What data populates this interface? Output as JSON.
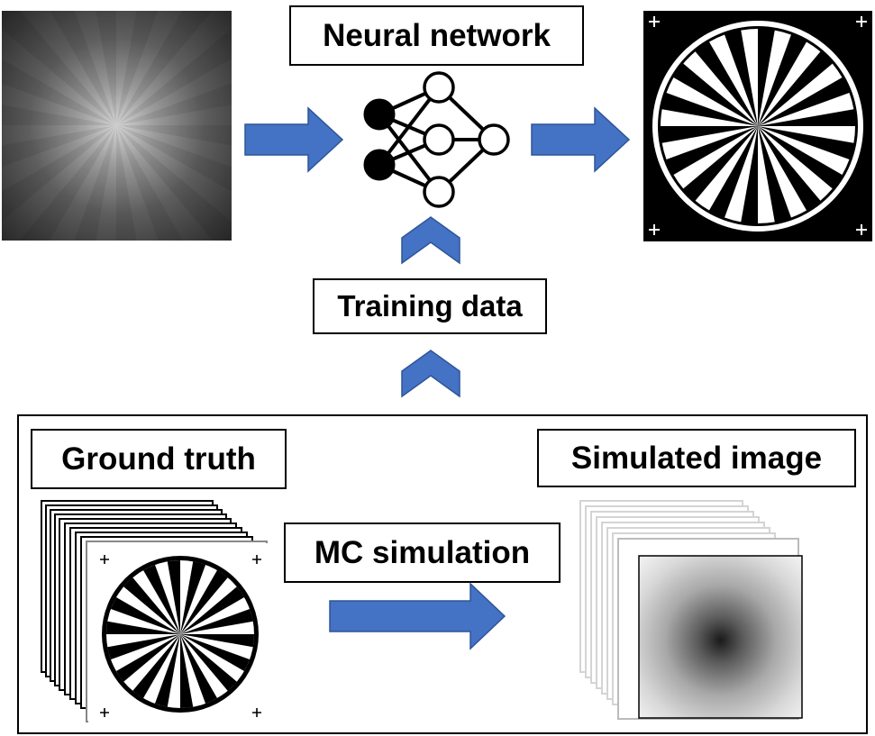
{
  "labels": {
    "neural_network": "Neural network",
    "training_data": "Training data",
    "ground_truth": "Ground truth",
    "mc_simulation": "MC simulation",
    "simulated_image": "Simulated image"
  },
  "colors": {
    "arrow_fill": "#4472C4",
    "arrow_stroke": "#2F5597",
    "neuron_input": "#000000",
    "neuron_hidden": "#FFFFFF",
    "frame": "#000000"
  },
  "diagram": {
    "star_spokes": 36,
    "input_image": "measured-speckle-image",
    "output_image": "reconstructed-siemens-star",
    "ground_truth_image": "siemens-star-target-stack",
    "simulated_image": "simulated-diffuse-image-stack"
  }
}
